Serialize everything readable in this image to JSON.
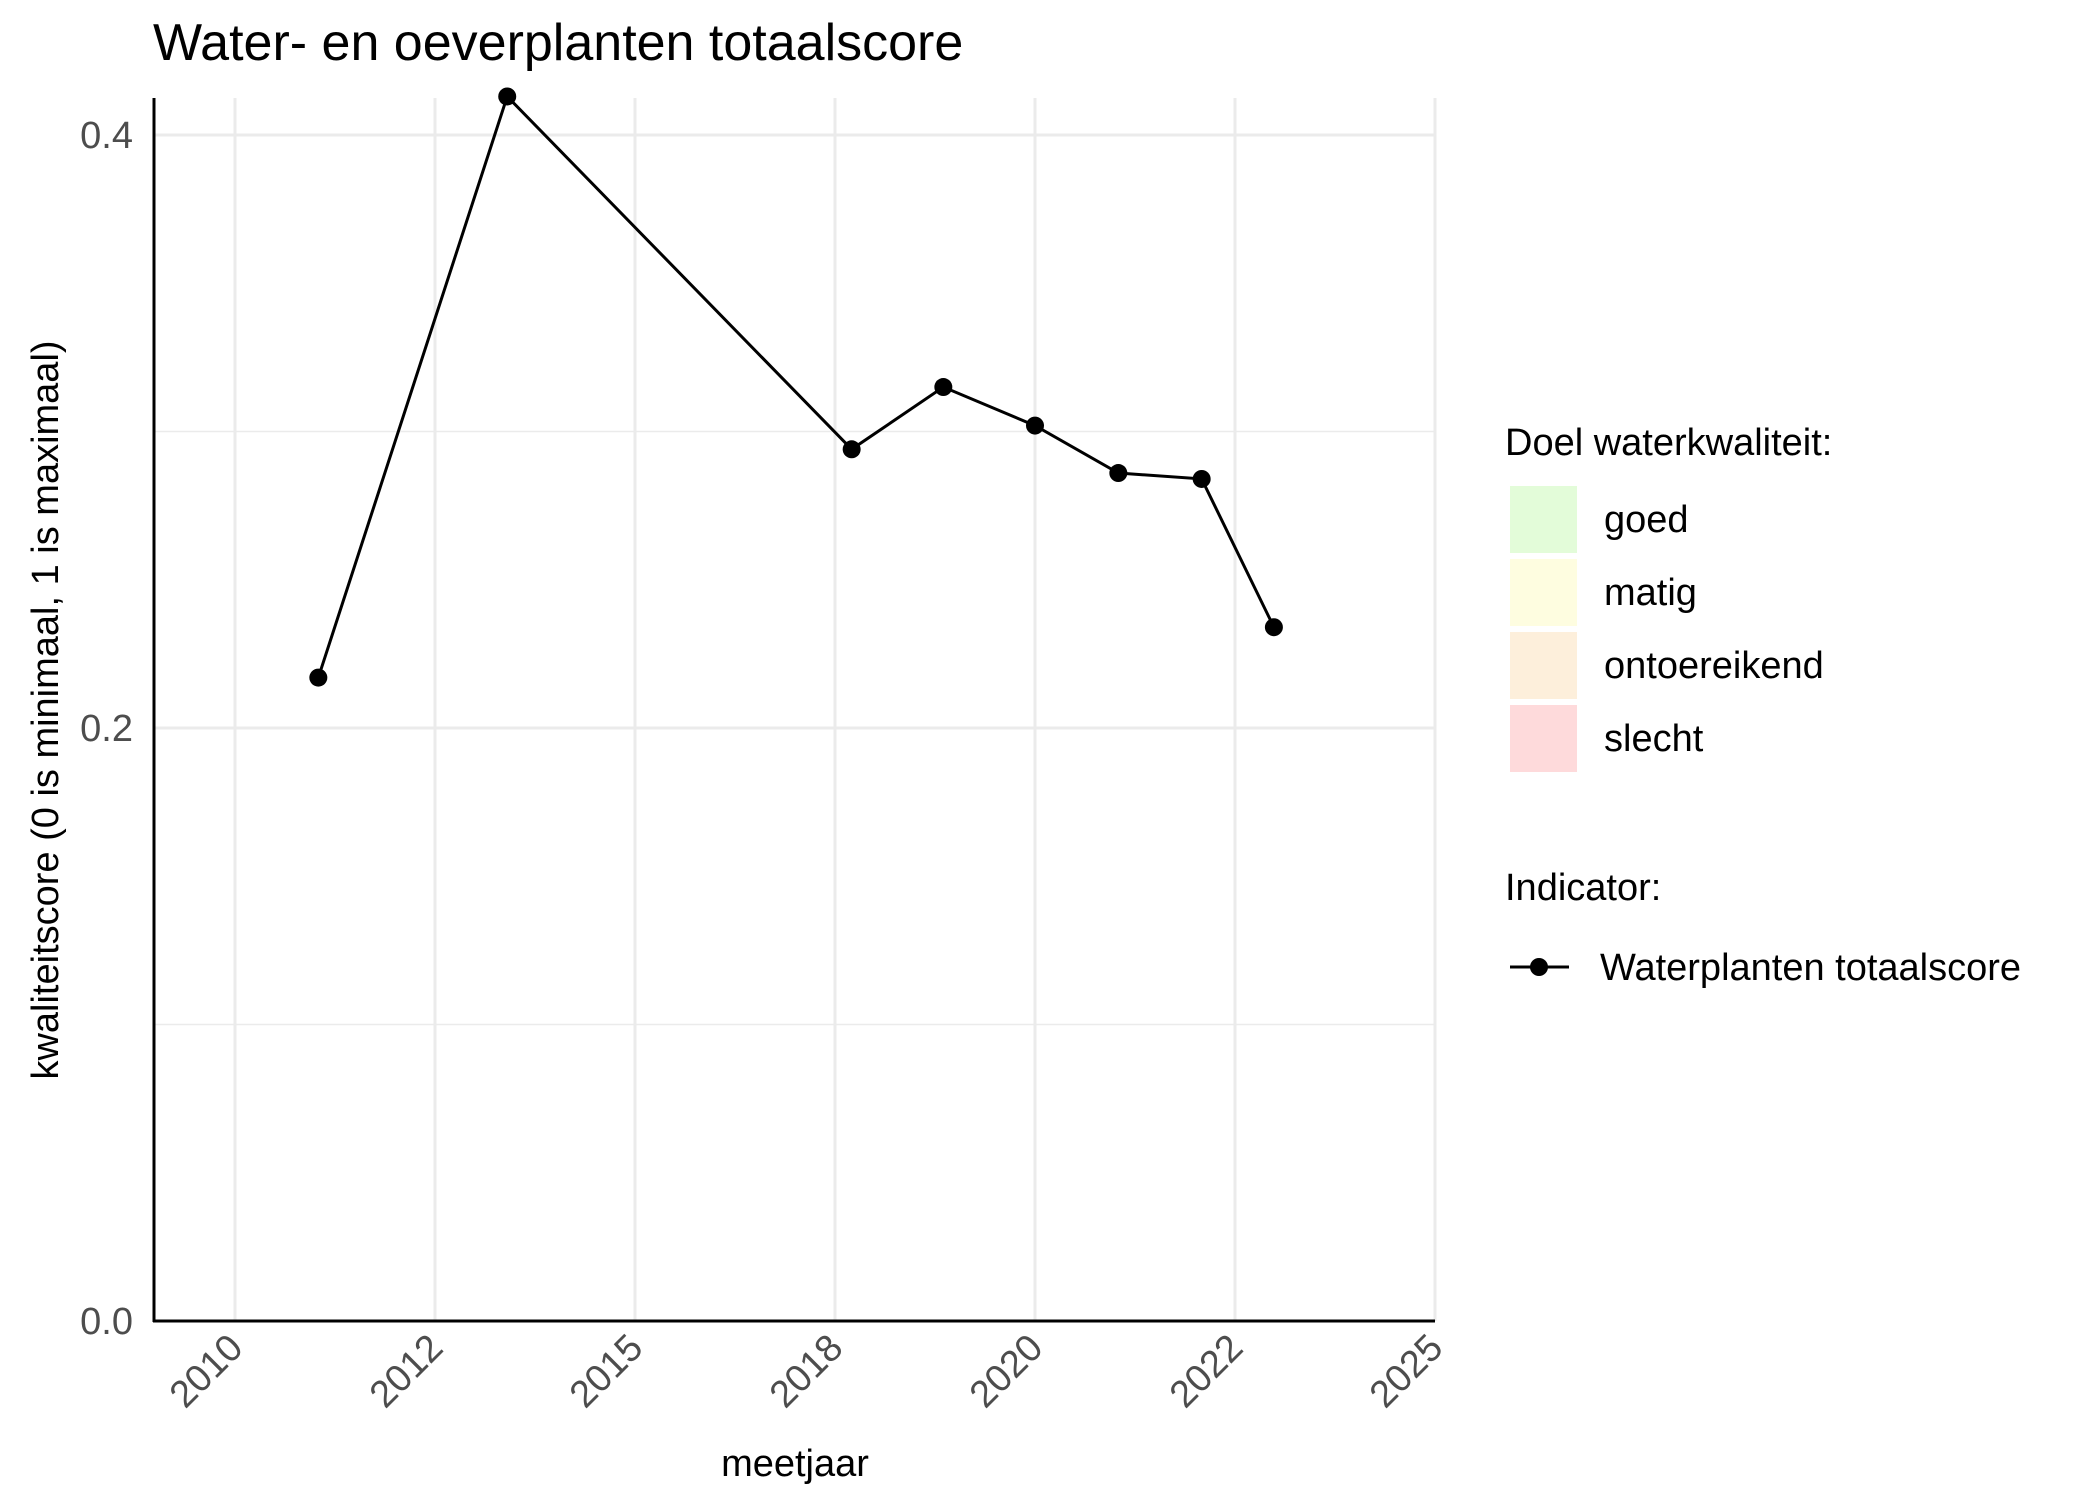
{
  "chart_data": {
    "type": "line",
    "title": "Water- en oeverplanten totaalscore",
    "xlabel": "meetjaar",
    "ylabel": "kwaliteitscore (0 is minimaal, 1 is maximaal)",
    "x_ticks": [
      "2010",
      "2012",
      "2015",
      "2018",
      "2020",
      "2022",
      "2025"
    ],
    "y_ticks": [
      "0.0",
      "0.2",
      "0.4"
    ],
    "ylim": [
      0,
      0.413
    ],
    "grid": true,
    "series": [
      {
        "name": "Waterplanten totaalscore",
        "color": "#000000",
        "x": [
          "2010-11",
          "2013-02",
          "2018-03",
          "2019-02",
          "2020-01",
          "2020-11",
          "2021-09",
          "2022-08"
        ],
        "y": [
          0.217,
          0.413,
          0.294,
          0.315,
          0.302,
          0.286,
          0.284,
          0.234
        ]
      }
    ],
    "legend": {
      "position": "right",
      "doel_title": "Doel waterkwaliteit:",
      "doel_items": [
        {
          "label": "goed",
          "color": "#e3fcd9"
        },
        {
          "label": "matig",
          "color": "#fefde0"
        },
        {
          "label": "ontoereikend",
          "color": "#fdefdb"
        },
        {
          "label": "slecht",
          "color": "#fedadb"
        }
      ],
      "indicator_title": "Indicator:",
      "indicator_label": "Waterplanten totaalscore"
    }
  }
}
